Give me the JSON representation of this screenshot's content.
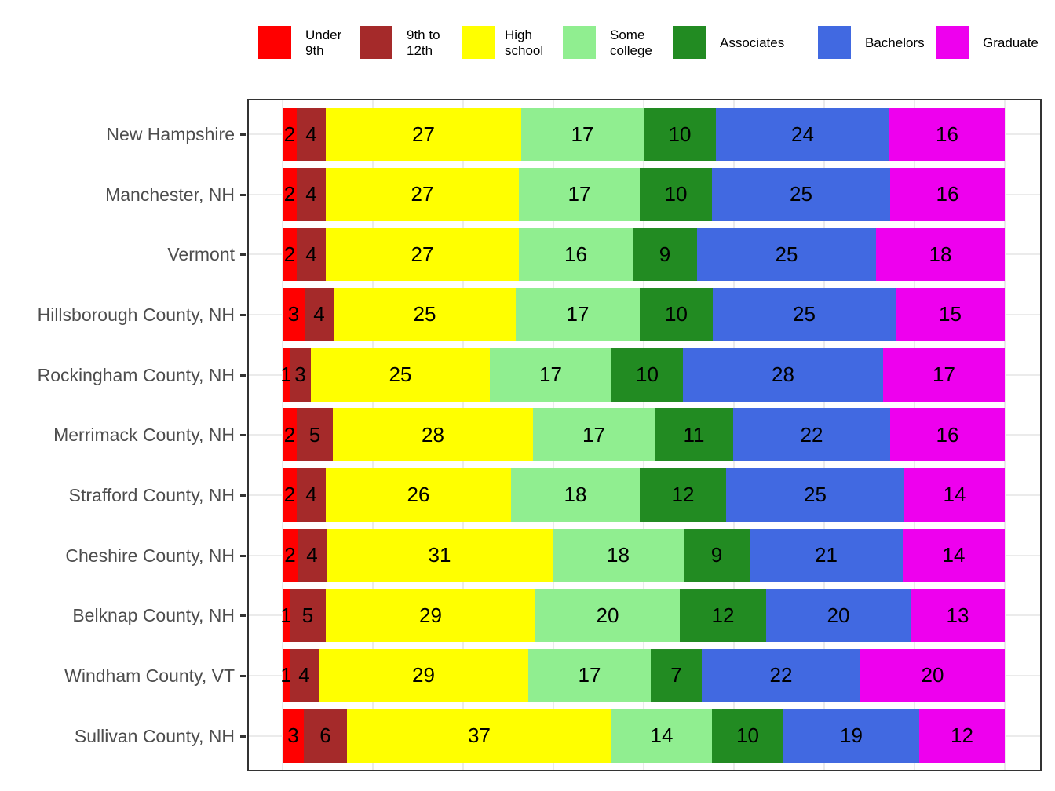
{
  "chart_data": {
    "type": "bar",
    "orientation": "horizontal",
    "stacked": true,
    "title": "",
    "xlabel": "",
    "ylabel": "",
    "xlim": [
      0,
      100
    ],
    "grid": true,
    "legend_position": "top",
    "categories": [
      "New Hampshire",
      "Manchester, NH",
      "Vermont",
      "Hillsborough County, NH",
      "Rockingham County, NH",
      "Merrimack County, NH",
      "Strafford County, NH",
      "Cheshire County, NH",
      "Belknap County, NH",
      "Windham County, VT",
      "Sullivan County, NH"
    ],
    "series": [
      {
        "name": "Under 9th",
        "legend_label": "Under\n9th",
        "color": "#ff0000",
        "values": [
          2,
          2,
          2,
          3,
          1,
          2,
          2,
          2,
          1,
          1,
          3
        ]
      },
      {
        "name": "9th to 12th",
        "legend_label": "9th to\n12th",
        "color": "#a52a2a",
        "values": [
          4,
          4,
          4,
          4,
          3,
          5,
          4,
          4,
          5,
          4,
          6
        ]
      },
      {
        "name": "High school",
        "legend_label": "High\nschool",
        "color": "#ffff00",
        "values": [
          27,
          27,
          27,
          25,
          25,
          28,
          26,
          31,
          29,
          29,
          37
        ]
      },
      {
        "name": "Some college",
        "legend_label": "Some\ncollege",
        "color": "#90ee90",
        "values": [
          17,
          17,
          16,
          17,
          17,
          17,
          18,
          18,
          20,
          17,
          14
        ]
      },
      {
        "name": "Associates",
        "legend_label": "Associates",
        "color": "#228b22",
        "values": [
          10,
          10,
          9,
          10,
          10,
          11,
          12,
          9,
          12,
          7,
          10
        ]
      },
      {
        "name": "Bachelors",
        "legend_label": "Bachelors",
        "color": "#4169e1",
        "values": [
          24,
          25,
          25,
          25,
          28,
          22,
          25,
          21,
          20,
          22,
          19
        ]
      },
      {
        "name": "Graduate",
        "legend_label": "Graduate",
        "color": "#ee00ee",
        "values": [
          16,
          16,
          18,
          15,
          17,
          16,
          14,
          14,
          13,
          20,
          12
        ]
      }
    ]
  },
  "legend": {
    "items": [
      {
        "label": "Under\n9th",
        "color": "#ff0000"
      },
      {
        "label": "9th to\n12th",
        "color": "#a52a2a"
      },
      {
        "label": "High\nschool",
        "color": "#ffff00"
      },
      {
        "label": "Some\ncollege",
        "color": "#90ee90"
      },
      {
        "label": "Associates",
        "color": "#228b22"
      },
      {
        "label": "Bachelors",
        "color": "#4169e1"
      },
      {
        "label": "Graduate",
        "color": "#ee00ee"
      }
    ]
  }
}
